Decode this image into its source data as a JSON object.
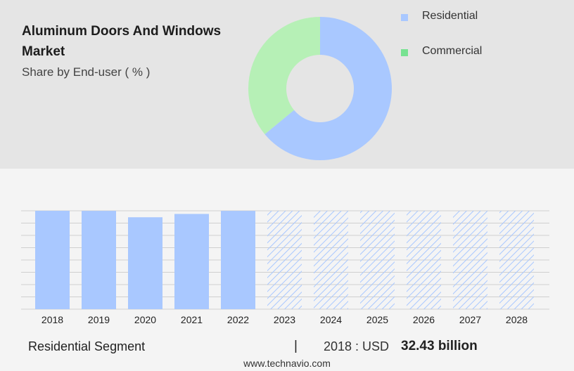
{
  "title": "Aluminum Doors And Windows Market",
  "subtitle": "Share by End-user ( % )",
  "colors": {
    "residential": "#a9c8ff",
    "commercial": "#b6f0b6",
    "commercial_legend": "#77e291",
    "hatch": "#a9c8ff",
    "grid": "#cfcfcf"
  },
  "chart_data": [
    {
      "type": "pie",
      "style": "donut",
      "categories": [
        "Residential",
        "Commercial"
      ],
      "values": [
        64,
        36
      ],
      "legend_position": "top-right"
    },
    {
      "type": "bar",
      "categories": [
        "2018",
        "2019",
        "2020",
        "2021",
        "2022",
        "2023",
        "2024",
        "2025",
        "2026",
        "2027",
        "2028"
      ],
      "values": [
        32.43,
        32.4,
        30.3,
        31.4,
        32.4,
        null,
        null,
        null,
        null,
        null,
        null
      ],
      "forecast_categories": [
        "2023",
        "2024",
        "2025",
        "2026",
        "2027",
        "2028"
      ],
      "grid": true
    }
  ],
  "footer": {
    "segment_label": "Residential Segment",
    "divider": "|",
    "year_text": "2018 : USD",
    "value_text": "32.43 billion"
  },
  "watermark": "www.technavio.com"
}
